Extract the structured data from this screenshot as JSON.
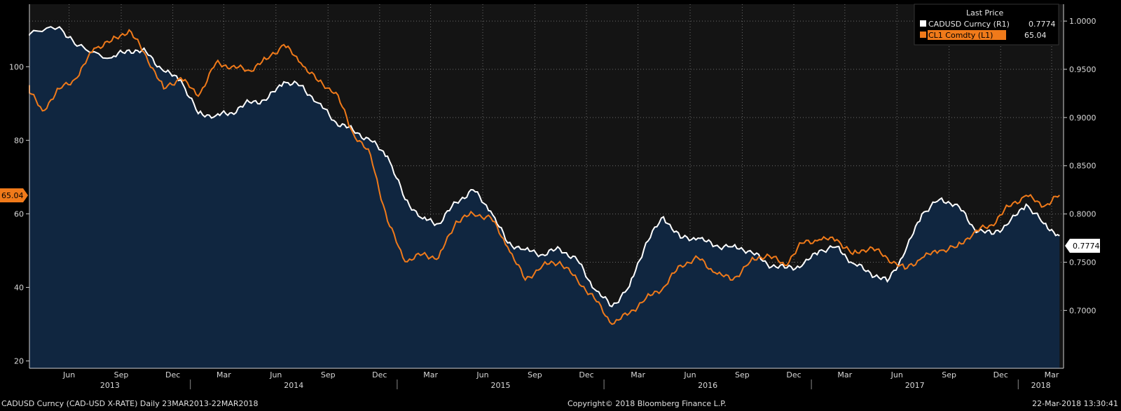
{
  "chart_data": {
    "type": "line",
    "legend": {
      "title": "Last Price",
      "placement": "top-right",
      "entries": [
        {
          "name": "CADUSD Curncy  (R1)",
          "value": "0.7774",
          "color": "#ffffff"
        },
        {
          "name": "CL1 Comdty  (L1)",
          "value": "65.04",
          "color": "#f07a1a"
        }
      ]
    },
    "left_axis": {
      "ticks": [
        "20",
        "40",
        "60",
        "80",
        "100"
      ],
      "tick_values": [
        20,
        40,
        60,
        80,
        100
      ],
      "ylim": [
        18,
        117
      ]
    },
    "right_axis": {
      "ticks": [
        "0.7000",
        "0.7500",
        "0.8000",
        "0.8500",
        "0.9000",
        "0.9500",
        "1.0000"
      ],
      "tick_values": [
        0.7,
        0.75,
        0.8,
        0.85,
        0.9,
        0.95,
        1.0
      ],
      "ylim": [
        0.64,
        1.0175
      ]
    },
    "x_labels": {
      "months": [
        "Jun",
        "Sep",
        "Dec",
        "Mar",
        "Jun",
        "Sep",
        "Dec",
        "Mar",
        "Jun",
        "Sep",
        "Dec",
        "Mar",
        "Jun",
        "Sep",
        "Dec",
        "Mar",
        "Jun",
        "Sep",
        "Dec",
        "Mar"
      ],
      "years": [
        "2013",
        "2014",
        "2015",
        "2016",
        "2017",
        "2018"
      ]
    },
    "markers": {
      "left_last": "65.04",
      "right_last": "0.7774"
    },
    "series": [
      {
        "name": "CADUSD Curncy  (R1)",
        "axis": "right",
        "color": "#ffffff",
        "fill": true,
        "x": [
          "2013-03",
          "2013-05",
          "2013-06",
          "2013-08",
          "2013-09",
          "2013-10",
          "2013-11",
          "2013-12",
          "2014-01",
          "2014-02",
          "2014-03",
          "2014-04",
          "2014-05",
          "2014-06",
          "2014-07",
          "2014-08",
          "2014-09",
          "2014-10",
          "2014-11",
          "2014-12",
          "2015-01",
          "2015-02",
          "2015-03",
          "2015-04",
          "2015-05",
          "2015-06",
          "2015-07",
          "2015-08",
          "2015-09",
          "2015-10",
          "2015-11",
          "2015-12",
          "2016-01",
          "2016-02",
          "2016-03",
          "2016-04",
          "2016-05",
          "2016-06",
          "2016-07",
          "2016-08",
          "2016-09",
          "2016-10",
          "2016-11",
          "2016-12",
          "2017-01",
          "2017-02",
          "2017-03",
          "2017-04",
          "2017-05",
          "2017-06",
          "2017-07",
          "2017-08",
          "2017-09",
          "2017-10",
          "2017-11",
          "2017-12",
          "2018-01",
          "2018-02",
          "2018-03"
        ],
        "values": [
          0.985,
          0.994,
          0.974,
          0.962,
          0.97,
          0.968,
          0.948,
          0.939,
          0.904,
          0.902,
          0.905,
          0.916,
          0.918,
          0.937,
          0.933,
          0.915,
          0.895,
          0.887,
          0.876,
          0.86,
          0.815,
          0.795,
          0.79,
          0.812,
          0.825,
          0.803,
          0.77,
          0.763,
          0.758,
          0.764,
          0.752,
          0.722,
          0.704,
          0.725,
          0.77,
          0.797,
          0.775,
          0.775,
          0.767,
          0.766,
          0.762,
          0.748,
          0.744,
          0.746,
          0.762,
          0.766,
          0.749,
          0.739,
          0.73,
          0.76,
          0.8,
          0.815,
          0.81,
          0.785,
          0.779,
          0.79,
          0.81,
          0.79,
          0.7774
        ]
      },
      {
        "name": "CL1 Comdty  (L1)",
        "axis": "left",
        "color": "#f07a1a",
        "fill": false,
        "x": [
          "2013-03",
          "2013-04",
          "2013-05",
          "2013-06",
          "2013-07",
          "2013-08",
          "2013-09",
          "2013-10",
          "2013-11",
          "2013-12",
          "2014-01",
          "2014-02",
          "2014-03",
          "2014-04",
          "2014-05",
          "2014-06",
          "2014-07",
          "2014-08",
          "2014-09",
          "2014-10",
          "2014-11",
          "2014-12",
          "2015-01",
          "2015-02",
          "2015-03",
          "2015-04",
          "2015-05",
          "2015-06",
          "2015-07",
          "2015-08",
          "2015-09",
          "2015-10",
          "2015-11",
          "2015-12",
          "2016-01",
          "2016-02",
          "2016-03",
          "2016-04",
          "2016-05",
          "2016-06",
          "2016-07",
          "2016-08",
          "2016-09",
          "2016-10",
          "2016-11",
          "2016-12",
          "2017-01",
          "2017-02",
          "2017-03",
          "2017-04",
          "2017-05",
          "2017-06",
          "2017-07",
          "2017-08",
          "2017-09",
          "2017-10",
          "2017-11",
          "2017-12",
          "2018-01",
          "2018-02",
          "2018-03"
        ],
        "values": [
          95,
          88,
          94,
          97,
          105,
          107,
          110,
          103,
          94,
          97,
          92,
          101,
          100,
          99,
          102,
          106,
          101,
          96,
          93,
          82,
          76,
          58,
          47,
          49,
          48,
          58,
          60,
          59,
          51,
          42,
          46,
          47,
          42,
          37,
          30,
          33,
          37,
          40,
          46,
          48,
          44,
          42,
          47,
          49,
          46,
          52,
          53,
          53,
          49,
          51,
          48,
          45,
          48,
          50,
          51,
          55,
          57,
          62,
          65,
          62,
          65.04
        ]
      }
    ]
  },
  "footer": {
    "left": "CADUSD Curncy (CAD-USD X-RATE)  Daily 23MAR2013-22MAR2018",
    "center": "Copyright© 2018 Bloomberg Finance L.P.",
    "right": "22-Mar-2018 13:30:41"
  },
  "colors": {
    "background": "#000000",
    "plot_top": "#141414",
    "area_fill": "#102640",
    "grid": "#6c6c6c",
    "cad_line": "#ffffff",
    "oil_line": "#f07a1a"
  }
}
